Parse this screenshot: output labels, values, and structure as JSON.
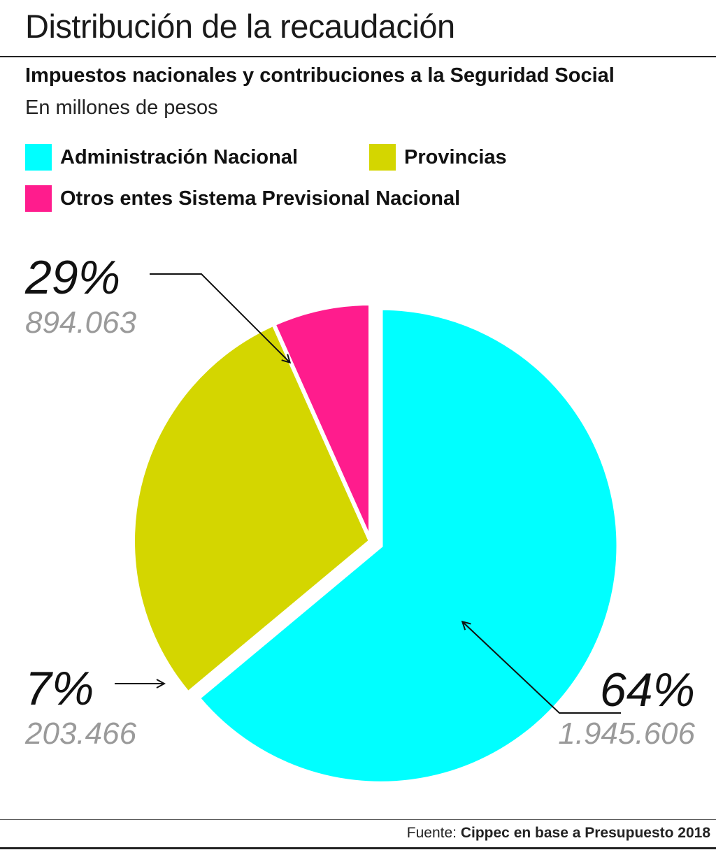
{
  "header": {
    "title": "Distribución de la recaudación",
    "subtitle": "Impuestos nacionales y contribuciones a la Seguridad Social",
    "units": "En millones de pesos"
  },
  "legend": [
    {
      "label": "Administración Nacional",
      "color": "#00FFFF"
    },
    {
      "label": "Provincias",
      "color": "#D4D600"
    },
    {
      "label": "Otros entes Sistema Previsional Nacional",
      "color": "#FF1C8D"
    }
  ],
  "chart_data": {
    "type": "pie",
    "slices": [
      {
        "name": "Administración Nacional",
        "value": 1945606,
        "value_label": "1.945.606",
        "percent_label": "64%",
        "color": "#00FFFF",
        "exploded": true
      },
      {
        "name": "Provincias",
        "value": 894063,
        "value_label": "894.063",
        "percent_label": "29%",
        "color": "#D4D600",
        "exploded": false
      },
      {
        "name": "Otros entes Sistema Previsional Nacional",
        "value": 203466,
        "value_label": "203.466",
        "percent_label": "7%",
        "color": "#FF1C8D",
        "exploded": false
      }
    ]
  },
  "footer": {
    "prefix": "Fuente: ",
    "source": "Cippec en base a Presupuesto 2018"
  }
}
